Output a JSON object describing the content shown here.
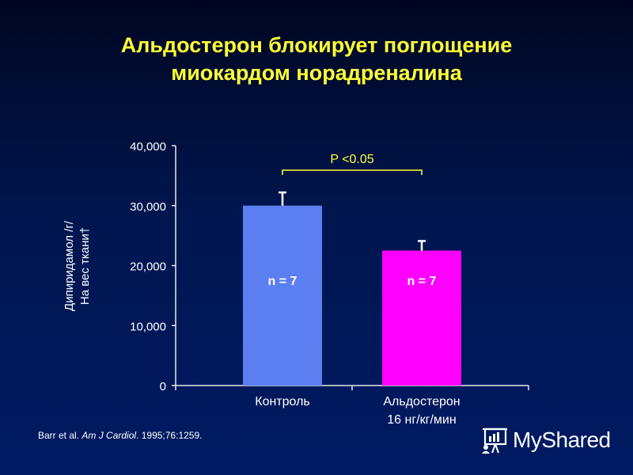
{
  "title": {
    "line1": "Альдостерон блокирует поглощение",
    "line2": "миокардом норадреналина"
  },
  "colors": {
    "title": "#ffff33",
    "control_bar": "#5b7ff0",
    "aldosterone_bar": "#ff00ff",
    "text": "#ffffff",
    "significance": "#ffff33"
  },
  "chart_data": {
    "type": "bar",
    "categories": [
      [
        "Контроль"
      ],
      [
        "Альдостерон",
        "16 нг/кг/мин"
      ]
    ],
    "values": [
      30000,
      22500
    ],
    "errors": [
      2200,
      1600
    ],
    "bar_labels": [
      "n = 7",
      "n = 7"
    ],
    "ylabel_lines": [
      "Дипиридамол /г/",
      "На вес ткани†"
    ],
    "ylim": [
      0,
      40000
    ],
    "yticks": [
      0,
      10000,
      20000,
      30000,
      40000
    ],
    "ytick_labels": [
      "0",
      "10,000",
      "20,000",
      "30,000",
      "40,000"
    ],
    "significance": {
      "label": "P <0.05",
      "between": [
        0,
        1
      ]
    },
    "grid": false,
    "legend": "none"
  },
  "citation": {
    "authors": "Barr et al.",
    "journal": "Am J Cardiol",
    "details": ". 1995;76:1259."
  },
  "watermark": {
    "text": "MyShared",
    "icon": "presentation-board-icon"
  }
}
